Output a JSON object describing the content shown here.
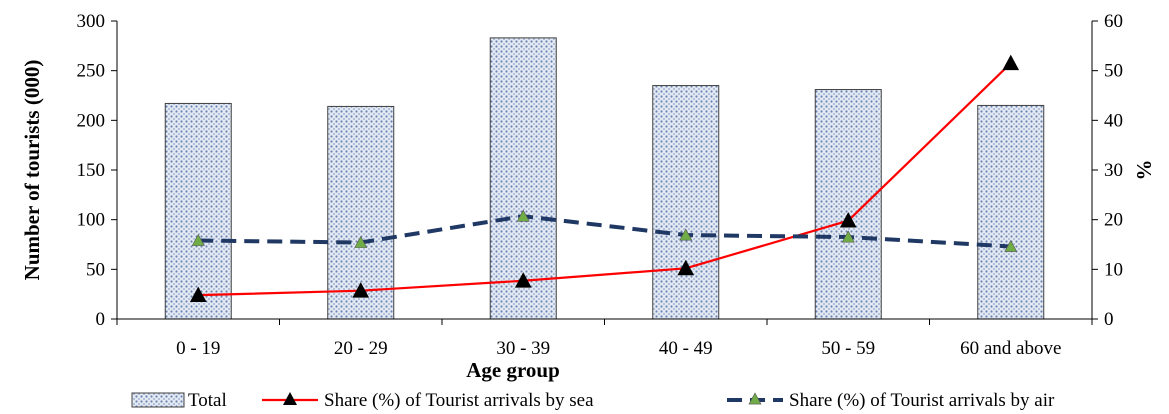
{
  "chart_data": {
    "type": "bar+line",
    "title": "",
    "xlabel": "Age group",
    "ylabel_left": "Number of tourists (000)",
    "ylabel_right": "%",
    "categories": [
      "0 - 19",
      "20 - 29",
      "30 - 39",
      "40 - 49",
      "50 - 59",
      "60 and above"
    ],
    "y_left": {
      "min": 0,
      "max": 300,
      "step": 50
    },
    "y_right": {
      "min": 0,
      "max": 60,
      "step": 10
    },
    "grid": false,
    "legend_position": "bottom",
    "series": [
      {
        "name": "Total",
        "type": "bar",
        "axis": "left",
        "values": [
          217,
          214,
          283,
          235,
          231,
          215
        ]
      },
      {
        "name": "Share (%) of Tourist arrivals by sea",
        "type": "line",
        "axis": "right",
        "color": "#ff0000",
        "marker": "triangle-black",
        "values": [
          4.8,
          5.7,
          7.7,
          10.2,
          19.8,
          51.5
        ]
      },
      {
        "name": "Share (%) of Tourist arrivals by air",
        "type": "line",
        "axis": "right",
        "color": "#203864",
        "dash": true,
        "marker": "triangle-green",
        "values": [
          15.8,
          15.4,
          20.7,
          16.9,
          16.5,
          14.6
        ]
      }
    ],
    "colors": {
      "bar_fill": "#dfe6f2",
      "bar_dots": "#6b84b0",
      "bar_border": "#404040",
      "sea_line": "#ff0000",
      "air_line": "#203864",
      "air_marker": "#70ad47"
    }
  }
}
